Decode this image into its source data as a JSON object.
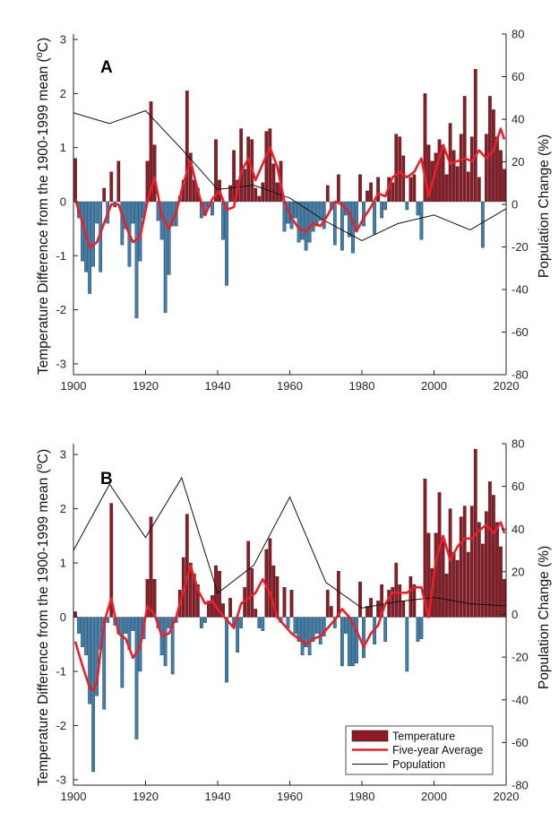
{
  "chart_data": [
    {
      "type": "bar",
      "panel_label": "A",
      "ylabel": "Temperature Difference from the 1900-1999 mean (",
      "ylabel_deg": "o",
      "ylabel_unit": "C)",
      "ylabel_right": "Population Change (%)",
      "xlim": [
        1900,
        2020
      ],
      "ylim": [
        -3.2,
        3.1
      ],
      "ylim_right": [
        -80,
        80
      ],
      "xticks": [
        "1900",
        "1920",
        "1940",
        "1960",
        "1980",
        "2000",
        "2020"
      ],
      "yticks": [
        "-3",
        "-2",
        "-1",
        "0",
        "1",
        "2",
        "3"
      ],
      "yticks_right": [
        "-80",
        "-60",
        "-40",
        "-20",
        "0",
        "20",
        "40",
        "60",
        "80"
      ],
      "series": [
        {
          "name": "Temperature",
          "type": "bar",
          "start_year": 1900,
          "values": [
            0.8,
            -0.3,
            -1.1,
            -1.3,
            -1.7,
            -1.2,
            -0.4,
            -1.3,
            0.25,
            -0.4,
            0.55,
            -0.1,
            0.75,
            -0.8,
            -0.5,
            -1.2,
            -0.4,
            -2.15,
            -1.1,
            -0.3,
            0.75,
            1.85,
            1.05,
            -0.35,
            -0.7,
            -2.05,
            -1.35,
            -0.45,
            -0.45,
            0.1,
            0.4,
            2.05,
            0.9,
            0.4,
            0.25,
            -0.3,
            -0.25,
            -0.1,
            -0.25,
            1.15,
            0.4,
            -0.7,
            -1.55,
            0.3,
            0.95,
            0.4,
            1.35,
            0.6,
            1.2,
            1.15,
            0.25,
            0.1,
            0.35,
            1.3,
            1.35,
            0.7,
            0.35,
            0.75,
            -0.55,
            -0.4,
            -0.5,
            -0.3,
            -0.75,
            -0.7,
            -0.9,
            -0.75,
            -0.55,
            -0.45,
            -0.35,
            -0.5,
            0.3,
            -0.15,
            -0.8,
            0.5,
            -0.9,
            -0.25,
            -0.65,
            -0.95,
            -0.55,
            0.5,
            -0.45,
            0.2,
            0.35,
            -0.6,
            0.45,
            -0.3,
            -0.15,
            0.45,
            0.35,
            1.25,
            1.2,
            0.85,
            -0.15,
            0.45,
            0.5,
            -0.25,
            -0.7,
            2.0,
            1.05,
            0.75,
            0.9,
            1.15,
            1.05,
            0.5,
            1.45,
            0.95,
            0.65,
            1.25,
            1.95,
            0.55,
            1.2,
            2.45,
            0.45,
            -0.85,
            1.25,
            1.95,
            1.7,
            1.2,
            0.95,
            0.6
          ]
        },
        {
          "name": "Five-year Average",
          "type": "line",
          "years": [
            1900,
            1902,
            1904,
            1906,
            1908,
            1910,
            1912,
            1914,
            1916,
            1918,
            1920,
            1922,
            1924,
            1926,
            1928,
            1930,
            1932,
            1934,
            1936,
            1938,
            1940,
            1942,
            1944,
            1946,
            1948,
            1950,
            1952,
            1954,
            1956,
            1958,
            1960,
            1962,
            1964,
            1966,
            1968,
            1970,
            1972,
            1974,
            1976,
            1978,
            1980,
            1982,
            1984,
            1986,
            1988,
            1990,
            1992,
            1994,
            1996,
            1998,
            2000,
            2002,
            2004,
            2006,
            2008,
            2010,
            2012,
            2014,
            2016,
            2018,
            2019
          ],
          "values": [
            0.05,
            -0.4,
            -0.85,
            -0.75,
            -0.4,
            -0.05,
            -0.05,
            -0.45,
            -0.75,
            -0.65,
            0.0,
            0.45,
            -0.25,
            -0.5,
            -0.2,
            0.35,
            0.75,
            0.2,
            -0.25,
            0.05,
            0.2,
            -0.15,
            -0.1,
            0.55,
            0.8,
            0.4,
            0.7,
            1.0,
            0.65,
            0.0,
            -0.3,
            -0.5,
            -0.55,
            -0.4,
            -0.45,
            -0.25,
            0.0,
            -0.05,
            -0.2,
            -0.55,
            -0.3,
            -0.1,
            0.15,
            0.1,
            0.45,
            0.55,
            0.45,
            0.55,
            0.8,
            0.1,
            0.6,
            1.05,
            0.7,
            0.75,
            0.8,
            0.75,
            0.95,
            0.8,
            0.95,
            1.35,
            1.15
          ]
        },
        {
          "name": "Population",
          "type": "line",
          "axis": "right",
          "years": [
            1900,
            1910,
            1920,
            1930,
            1940,
            1950,
            1960,
            1970,
            1980,
            1990,
            2000,
            2010,
            2020
          ],
          "values": [
            43,
            38,
            44,
            26,
            7,
            9,
            3,
            -8,
            -17,
            -9,
            -5,
            -12,
            -2
          ]
        }
      ]
    },
    {
      "type": "bar",
      "panel_label": "B",
      "ylabel": "Temperature Difference from the 1900-1999 mean (",
      "ylabel_deg": "o",
      "ylabel_unit": "C)",
      "ylabel_right": "Population Change (%)",
      "xlim": [
        1900,
        2020
      ],
      "ylim": [
        -3.1,
        3.2
      ],
      "ylim_right": [
        -80,
        80
      ],
      "xticks": [
        "1900",
        "1920",
        "1940",
        "1960",
        "1980",
        "2000",
        "2020"
      ],
      "yticks": [
        "-3",
        "-2",
        "-1",
        "0",
        "1",
        "2",
        "3"
      ],
      "yticks_right": [
        "-80",
        "-60",
        "-40",
        "-20",
        "0",
        "20",
        "40",
        "60",
        "80"
      ],
      "legend": {
        "position": "bottom-right",
        "entries": [
          "Temperature",
          "Five-year Average",
          "Population"
        ]
      },
      "series": [
        {
          "name": "Temperature",
          "type": "bar",
          "start_year": 1900,
          "values": [
            0.1,
            -0.3,
            -0.55,
            -0.7,
            -1.6,
            -2.85,
            -1.45,
            -0.6,
            -1.7,
            -0.1,
            2.1,
            -0.15,
            -0.3,
            -1.3,
            -0.3,
            -0.6,
            -0.25,
            -2.25,
            -1.0,
            -0.4,
            0.7,
            1.85,
            0.7,
            -0.2,
            -0.7,
            -0.9,
            -0.2,
            -1.05,
            -0.1,
            0.5,
            1.1,
            1.9,
            1.0,
            0.8,
            0.6,
            -0.2,
            -0.1,
            0.3,
            0.4,
            0.95,
            0.85,
            0.25,
            -1.2,
            0.35,
            -0.15,
            -0.65,
            -0.2,
            0.55,
            1.4,
            0.9,
            0.15,
            -0.2,
            -0.25,
            1.25,
            1.45,
            0.95,
            0.75,
            -0.1,
            0.55,
            -0.2,
            0.5,
            -0.3,
            -0.45,
            -0.7,
            -0.55,
            -0.7,
            -0.45,
            -0.3,
            -0.5,
            -0.35,
            0.5,
            0.2,
            -0.2,
            0.85,
            -0.9,
            -0.3,
            -0.9,
            -0.9,
            -0.85,
            0.65,
            -0.75,
            0.2,
            0.35,
            -0.5,
            0.3,
            0.6,
            -0.45,
            0.5,
            0.55,
            1.0,
            0.6,
            0.3,
            -1.0,
            0.75,
            0.6,
            -0.45,
            -0.4,
            2.55,
            1.55,
            0.9,
            1.55,
            2.3,
            1.4,
            0.8,
            2.0,
            1.2,
            1.05,
            1.85,
            2.05,
            1.2,
            2.05,
            3.1,
            1.75,
            1.35,
            1.95,
            2.5,
            2.25,
            1.75,
            1.3,
            0.7
          ]
        },
        {
          "name": "Five-year Average",
          "type": "line",
          "years": [
            1900,
            1902,
            1904,
            1905,
            1906,
            1908,
            1910,
            1912,
            1914,
            1916,
            1918,
            1920,
            1922,
            1924,
            1926,
            1928,
            1930,
            1932,
            1934,
            1936,
            1938,
            1940,
            1942,
            1944,
            1946,
            1948,
            1950,
            1952,
            1954,
            1956,
            1958,
            1960,
            1962,
            1964,
            1966,
            1968,
            1970,
            1972,
            1974,
            1976,
            1978,
            1980,
            1982,
            1984,
            1986,
            1988,
            1990,
            1992,
            1994,
            1996,
            1998,
            2000,
            2002,
            2004,
            2006,
            2008,
            2010,
            2012,
            2014,
            2016,
            2018,
            2019
          ],
          "values": [
            -0.45,
            -0.9,
            -1.3,
            -1.35,
            -1.2,
            -0.1,
            0.35,
            -0.3,
            -0.4,
            -0.75,
            -0.55,
            0.2,
            0.05,
            -0.35,
            -0.3,
            0.0,
            0.5,
            0.95,
            0.5,
            0.25,
            0.3,
            0.1,
            -0.05,
            -0.2,
            0.25,
            0.35,
            0.45,
            0.7,
            0.45,
            0.0,
            -0.15,
            -0.3,
            -0.4,
            -0.5,
            -0.4,
            -0.35,
            -0.2,
            -0.05,
            0.15,
            0.0,
            -0.25,
            -0.55,
            -0.3,
            -0.15,
            0.25,
            0.45,
            0.45,
            0.45,
            0.55,
            0.55,
            0.0,
            1.05,
            1.5,
            1.05,
            1.3,
            1.45,
            1.45,
            1.6,
            1.7,
            1.55,
            1.75,
            1.55
          ]
        },
        {
          "name": "Population",
          "type": "line",
          "axis": "right",
          "years": [
            1900,
            1910,
            1920,
            1930,
            1940,
            1950,
            1960,
            1970,
            1980,
            1990,
            2000,
            2010,
            2020
          ],
          "values": [
            30,
            61,
            36,
            64,
            10,
            23,
            55,
            15,
            3,
            6,
            8,
            5,
            4
          ]
        }
      ]
    }
  ],
  "colors": {
    "bar_pos": "#8e1a25",
    "bar_neg": "#3d7fb0",
    "avg_line": "#e8202a",
    "pop_line": "#111111",
    "axis": "#222222"
  }
}
